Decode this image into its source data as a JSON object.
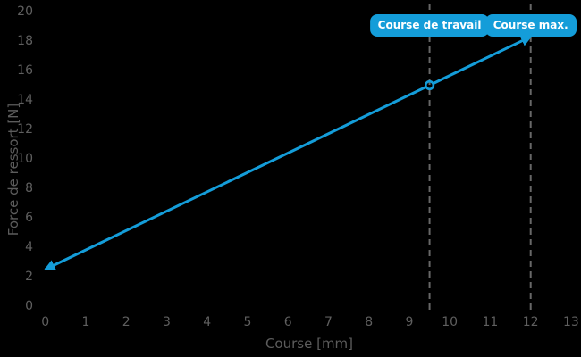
{
  "chart_data": {
    "type": "line",
    "title": "",
    "xlabel": "Course [mm]",
    "ylabel": "Force de ressort [N]",
    "xlim": [
      0,
      13
    ],
    "ylim": [
      0,
      20
    ],
    "xticks": [
      0,
      1,
      2,
      3,
      4,
      5,
      6,
      7,
      8,
      9,
      10,
      11,
      12,
      13
    ],
    "yticks": [
      0,
      2,
      4,
      6,
      8,
      10,
      12,
      14,
      16,
      18,
      20
    ],
    "grid": false,
    "legend": "none",
    "series": [
      {
        "name": "Force de ressort",
        "points": [
          [
            0,
            2.5
          ],
          [
            12,
            18.3
          ]
        ],
        "style": "solid-double-arrow",
        "color": "#149dd9"
      }
    ],
    "markers": [
      {
        "x": 9.5,
        "y": 15,
        "style": "open-circle",
        "color": "#149dd9"
      }
    ],
    "annotations": [
      {
        "label": "Course de travail",
        "x": 9.5,
        "line_style": "dashed"
      },
      {
        "label": "Course max.",
        "x": 12,
        "line_style": "dashed"
      }
    ]
  },
  "colors": {
    "background": "#000000",
    "accent_blue": "#149dd9",
    "badge_text": "#ffffff",
    "tick_text": "#5f5f5f",
    "dashed_line": "#676767"
  }
}
